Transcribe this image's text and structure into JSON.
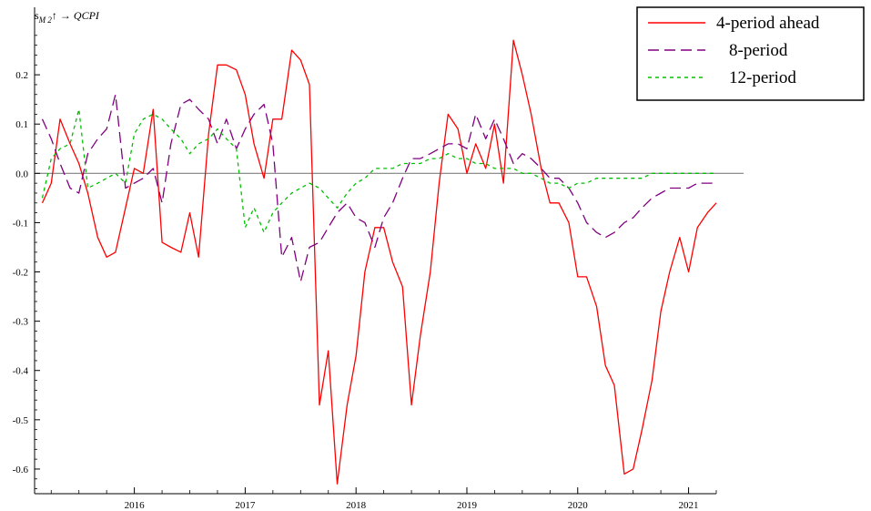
{
  "chart_data": {
    "type": "line",
    "title": "s_M2↑ → QCPI",
    "title_parts": {
      "base": "s",
      "sub": "M 2",
      "rest": "↑ → QCPI"
    },
    "xlabel": "",
    "ylabel": "",
    "xlim": [
      2015.1,
      2021.25
    ],
    "ylim": [
      -0.65,
      0.3
    ],
    "x_ticks": [
      2016,
      2017,
      2018,
      2019,
      2020,
      2021
    ],
    "x_tick_labels": [
      "2016",
      "2017",
      "2018",
      "2019",
      "2020",
      "2021"
    ],
    "y_ticks": [
      0.2,
      0.1,
      0.0,
      -0.1,
      -0.2,
      -0.3,
      -0.4,
      -0.5,
      -0.6
    ],
    "y_tick_labels": [
      "0.2",
      "0.1",
      "0.0",
      "-0.1",
      "-0.2",
      "-0.3",
      "-0.4",
      "-0.5",
      "-0.6"
    ],
    "grid": false,
    "zero_line": true,
    "legend_position": "top-right",
    "series": [
      {
        "name": "4-period ahead",
        "color": "#ff0000",
        "dash": "solid",
        "points": [
          [
            2015.17,
            -0.06
          ],
          [
            2015.25,
            -0.02
          ],
          [
            2015.33,
            0.11
          ],
          [
            2015.42,
            0.06
          ],
          [
            2015.5,
            0.02
          ],
          [
            2015.58,
            -0.04
          ],
          [
            2015.67,
            -0.13
          ],
          [
            2015.75,
            -0.17
          ],
          [
            2015.83,
            -0.16
          ],
          [
            2015.92,
            -0.07
          ],
          [
            2016.0,
            0.01
          ],
          [
            2016.08,
            0.0
          ],
          [
            2016.17,
            0.13
          ],
          [
            2016.25,
            -0.14
          ],
          [
            2016.33,
            -0.15
          ],
          [
            2016.42,
            -0.16
          ],
          [
            2016.5,
            -0.08
          ],
          [
            2016.58,
            -0.17
          ],
          [
            2016.67,
            0.08
          ],
          [
            2016.75,
            0.22
          ],
          [
            2016.83,
            0.22
          ],
          [
            2016.92,
            0.21
          ],
          [
            2017.0,
            0.16
          ],
          [
            2017.08,
            0.06
          ],
          [
            2017.17,
            -0.01
          ],
          [
            2017.25,
            0.11
          ],
          [
            2017.33,
            0.11
          ],
          [
            2017.42,
            0.25
          ],
          [
            2017.5,
            0.23
          ],
          [
            2017.58,
            0.18
          ],
          [
            2017.67,
            -0.47
          ],
          [
            2017.75,
            -0.36
          ],
          [
            2017.83,
            -0.63
          ],
          [
            2017.92,
            -0.47
          ],
          [
            2018.0,
            -0.37
          ],
          [
            2018.08,
            -0.2
          ],
          [
            2018.17,
            -0.11
          ],
          [
            2018.25,
            -0.11
          ],
          [
            2018.33,
            -0.18
          ],
          [
            2018.42,
            -0.23
          ],
          [
            2018.5,
            -0.47
          ],
          [
            2018.58,
            -0.33
          ],
          [
            2018.67,
            -0.2
          ],
          [
            2018.75,
            -0.02
          ],
          [
            2018.83,
            0.12
          ],
          [
            2018.92,
            0.09
          ],
          [
            2019.0,
            0.0
          ],
          [
            2019.08,
            0.06
          ],
          [
            2019.17,
            0.01
          ],
          [
            2019.25,
            0.1
          ],
          [
            2019.33,
            -0.02
          ],
          [
            2019.42,
            0.27
          ],
          [
            2019.5,
            0.2
          ],
          [
            2019.58,
            0.12
          ],
          [
            2019.67,
            0.01
          ],
          [
            2019.75,
            -0.06
          ],
          [
            2019.83,
            -0.06
          ],
          [
            2019.92,
            -0.1
          ],
          [
            2020.0,
            -0.21
          ],
          [
            2020.08,
            -0.21
          ],
          [
            2020.17,
            -0.27
          ],
          [
            2020.25,
            -0.39
          ],
          [
            2020.33,
            -0.43
          ],
          [
            2020.42,
            -0.61
          ],
          [
            2020.5,
            -0.6
          ],
          [
            2020.58,
            -0.52
          ],
          [
            2020.67,
            -0.42
          ],
          [
            2020.75,
            -0.28
          ],
          [
            2020.83,
            -0.2
          ],
          [
            2020.92,
            -0.13
          ],
          [
            2021.0,
            -0.2
          ],
          [
            2021.08,
            -0.11
          ],
          [
            2021.17,
            -0.08
          ],
          [
            2021.25,
            -0.06
          ]
        ]
      },
      {
        "name": "8-period",
        "color": "#800080",
        "dash": "12,6",
        "points": [
          [
            2015.17,
            0.11
          ],
          [
            2015.25,
            0.07
          ],
          [
            2015.33,
            0.02
          ],
          [
            2015.42,
            -0.03
          ],
          [
            2015.5,
            -0.04
          ],
          [
            2015.58,
            0.04
          ],
          [
            2015.67,
            0.07
          ],
          [
            2015.75,
            0.09
          ],
          [
            2015.83,
            0.16
          ],
          [
            2015.92,
            -0.03
          ],
          [
            2016.0,
            -0.02
          ],
          [
            2016.08,
            -0.01
          ],
          [
            2016.17,
            0.01
          ],
          [
            2016.25,
            -0.06
          ],
          [
            2016.33,
            0.06
          ],
          [
            2016.42,
            0.14
          ],
          [
            2016.5,
            0.15
          ],
          [
            2016.58,
            0.13
          ],
          [
            2016.67,
            0.11
          ],
          [
            2016.75,
            0.06
          ],
          [
            2016.83,
            0.11
          ],
          [
            2016.92,
            0.05
          ],
          [
            2017.0,
            0.09
          ],
          [
            2017.08,
            0.12
          ],
          [
            2017.17,
            0.14
          ],
          [
            2017.25,
            0.06
          ],
          [
            2017.33,
            -0.17
          ],
          [
            2017.42,
            -0.13
          ],
          [
            2017.5,
            -0.22
          ],
          [
            2017.58,
            -0.15
          ],
          [
            2017.67,
            -0.14
          ],
          [
            2017.75,
            -0.11
          ],
          [
            2017.83,
            -0.08
          ],
          [
            2017.92,
            -0.06
          ],
          [
            2018.0,
            -0.09
          ],
          [
            2018.08,
            -0.1
          ],
          [
            2018.17,
            -0.15
          ],
          [
            2018.25,
            -0.09
          ],
          [
            2018.33,
            -0.06
          ],
          [
            2018.42,
            -0.01
          ],
          [
            2018.5,
            0.03
          ],
          [
            2018.58,
            0.03
          ],
          [
            2018.67,
            0.04
          ],
          [
            2018.75,
            0.05
          ],
          [
            2018.83,
            0.06
          ],
          [
            2018.92,
            0.06
          ],
          [
            2019.0,
            0.05
          ],
          [
            2019.08,
            0.12
          ],
          [
            2019.17,
            0.07
          ],
          [
            2019.25,
            0.11
          ],
          [
            2019.33,
            0.07
          ],
          [
            2019.42,
            0.02
          ],
          [
            2019.5,
            0.04
          ],
          [
            2019.58,
            0.03
          ],
          [
            2019.67,
            0.01
          ],
          [
            2019.75,
            -0.01
          ],
          [
            2019.83,
            -0.01
          ],
          [
            2019.92,
            -0.03
          ],
          [
            2020.0,
            -0.06
          ],
          [
            2020.08,
            -0.1
          ],
          [
            2020.17,
            -0.12
          ],
          [
            2020.25,
            -0.13
          ],
          [
            2020.33,
            -0.12
          ],
          [
            2020.42,
            -0.1
          ],
          [
            2020.5,
            -0.09
          ],
          [
            2020.58,
            -0.07
          ],
          [
            2020.67,
            -0.05
          ],
          [
            2020.75,
            -0.04
          ],
          [
            2020.83,
            -0.03
          ],
          [
            2020.92,
            -0.03
          ],
          [
            2021.0,
            -0.03
          ],
          [
            2021.08,
            -0.02
          ],
          [
            2021.17,
            -0.02
          ],
          [
            2021.25,
            -0.02
          ]
        ]
      },
      {
        "name": "12-period",
        "color": "#00c000",
        "dash": "4,4",
        "points": [
          [
            2015.17,
            -0.05
          ],
          [
            2015.25,
            0.03
          ],
          [
            2015.33,
            0.05
          ],
          [
            2015.42,
            0.06
          ],
          [
            2015.5,
            0.13
          ],
          [
            2015.58,
            -0.03
          ],
          [
            2015.67,
            -0.02
          ],
          [
            2015.75,
            -0.01
          ],
          [
            2015.83,
            0.0
          ],
          [
            2015.92,
            -0.02
          ],
          [
            2016.0,
            0.08
          ],
          [
            2016.08,
            0.11
          ],
          [
            2016.17,
            0.12
          ],
          [
            2016.25,
            0.11
          ],
          [
            2016.33,
            0.09
          ],
          [
            2016.42,
            0.07
          ],
          [
            2016.5,
            0.04
          ],
          [
            2016.58,
            0.06
          ],
          [
            2016.67,
            0.07
          ],
          [
            2016.75,
            0.09
          ],
          [
            2016.83,
            0.07
          ],
          [
            2016.92,
            0.05
          ],
          [
            2017.0,
            -0.11
          ],
          [
            2017.08,
            -0.07
          ],
          [
            2017.17,
            -0.12
          ],
          [
            2017.25,
            -0.08
          ],
          [
            2017.33,
            -0.06
          ],
          [
            2017.42,
            -0.04
          ],
          [
            2017.5,
            -0.03
          ],
          [
            2017.58,
            -0.02
          ],
          [
            2017.67,
            -0.03
          ],
          [
            2017.75,
            -0.05
          ],
          [
            2017.83,
            -0.07
          ],
          [
            2017.92,
            -0.04
          ],
          [
            2018.0,
            -0.02
          ],
          [
            2018.08,
            -0.01
          ],
          [
            2018.17,
            0.01
          ],
          [
            2018.25,
            0.01
          ],
          [
            2018.33,
            0.01
          ],
          [
            2018.42,
            0.02
          ],
          [
            2018.5,
            0.02
          ],
          [
            2018.58,
            0.02
          ],
          [
            2018.67,
            0.03
          ],
          [
            2018.75,
            0.03
          ],
          [
            2018.83,
            0.04
          ],
          [
            2018.92,
            0.03
          ],
          [
            2019.0,
            0.03
          ],
          [
            2019.08,
            0.02
          ],
          [
            2019.17,
            0.02
          ],
          [
            2019.25,
            0.01
          ],
          [
            2019.33,
            0.01
          ],
          [
            2019.42,
            0.01
          ],
          [
            2019.5,
            0.0
          ],
          [
            2019.58,
            0.0
          ],
          [
            2019.67,
            -0.01
          ],
          [
            2019.75,
            -0.02
          ],
          [
            2019.83,
            -0.02
          ],
          [
            2019.92,
            -0.03
          ],
          [
            2020.0,
            -0.02
          ],
          [
            2020.08,
            -0.02
          ],
          [
            2020.17,
            -0.01
          ],
          [
            2020.25,
            -0.01
          ],
          [
            2020.33,
            -0.01
          ],
          [
            2020.42,
            -0.01
          ],
          [
            2020.5,
            -0.01
          ],
          [
            2020.58,
            -0.01
          ],
          [
            2020.67,
            0.0
          ],
          [
            2020.75,
            0.0
          ],
          [
            2020.83,
            0.0
          ],
          [
            2020.92,
            0.0
          ],
          [
            2021.0,
            0.0
          ],
          [
            2021.08,
            0.0
          ],
          [
            2021.17,
            0.0
          ],
          [
            2021.25,
            0.0
          ]
        ]
      }
    ]
  }
}
